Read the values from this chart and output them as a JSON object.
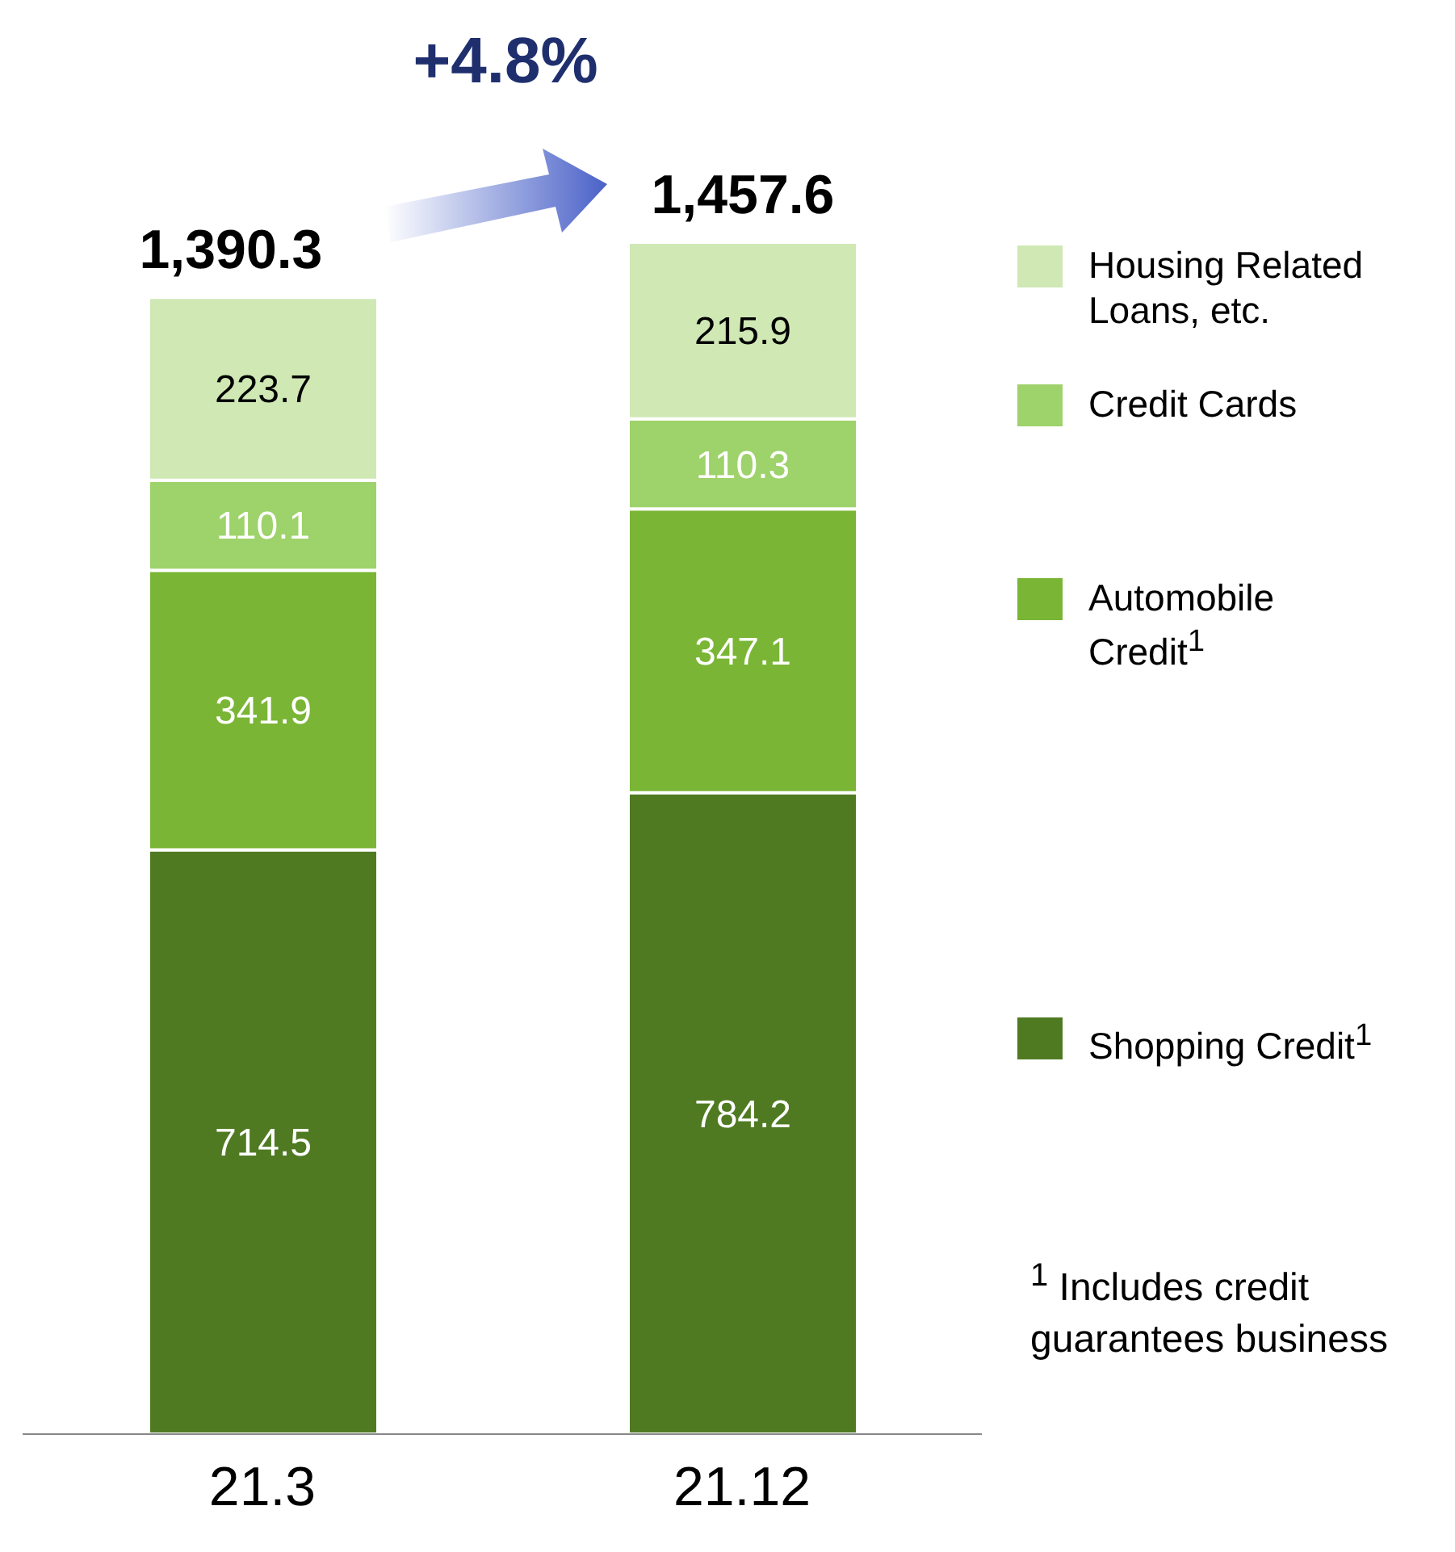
{
  "chart_data": {
    "type": "bar",
    "stacked": true,
    "categories": [
      "21.3",
      "21.12"
    ],
    "series": [
      {
        "name": "Shopping Credit$^{1}$",
        "color": "#4f7a22",
        "values": [
          714.5,
          784.2
        ]
      },
      {
        "name": "Automobile Credit$^{1}$",
        "color": "#7ab535",
        "values": [
          341.9,
          347.1
        ]
      },
      {
        "name": "Credit Cards",
        "color": "#9ed26a",
        "values": [
          110.1,
          110.3
        ]
      },
      {
        "name": "Housing Related Loans, etc.",
        "color": "#cfe8b4",
        "values": [
          223.7,
          215.9
        ]
      }
    ],
    "data_labels": true,
    "totals": [
      "1,390.3",
      "1,457.6"
    ],
    "legend": "right",
    "annotations": [
      "+4.8%",
      "$^{1}$ Includes credit guarantees business"
    ]
  }
}
